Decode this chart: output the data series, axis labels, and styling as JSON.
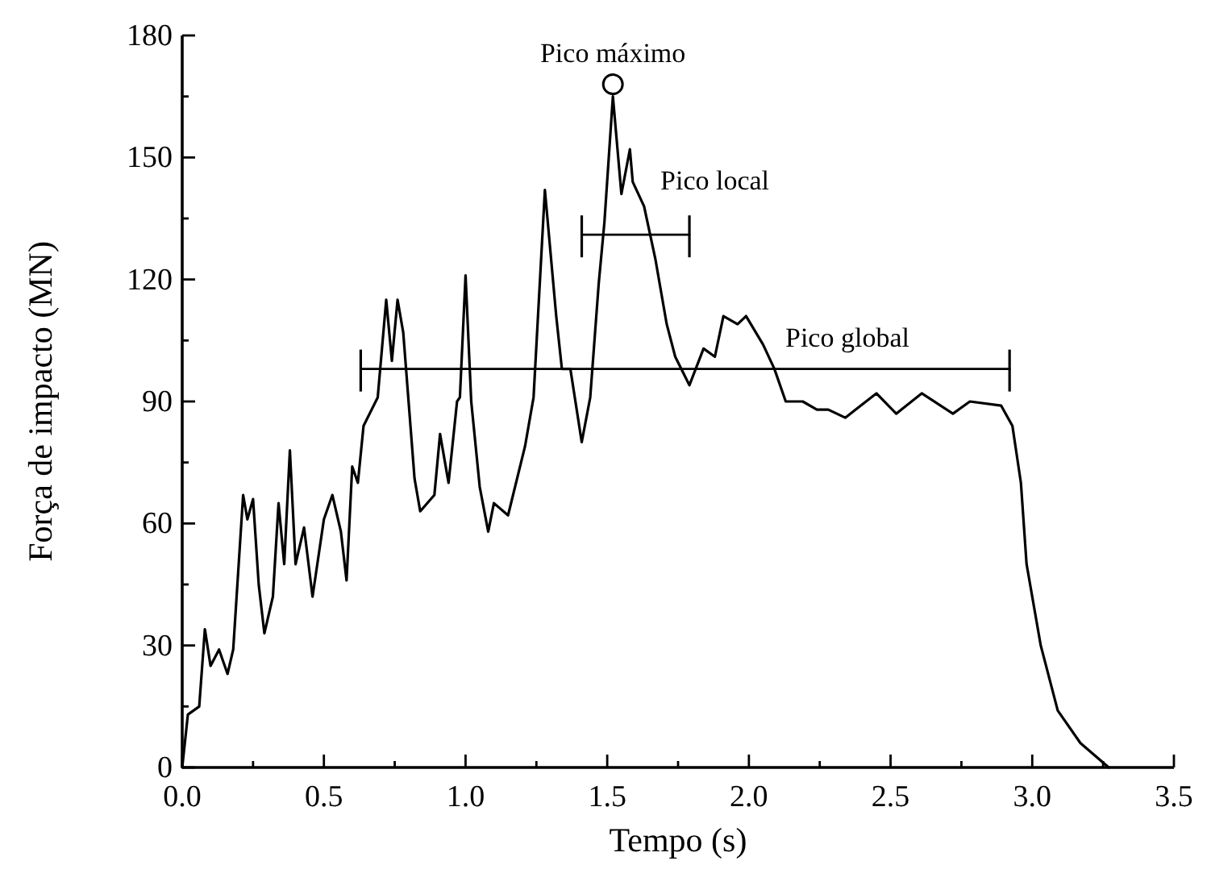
{
  "chart_data": {
    "type": "line",
    "xlabel": "Tempo (s)",
    "ylabel": "Força de impacto (MN)",
    "xlim": [
      0,
      3.5
    ],
    "ylim": [
      0,
      180
    ],
    "xticks": [
      {
        "value": 0,
        "label": "0.0"
      },
      {
        "value": 0.25,
        "label": null
      },
      {
        "value": 0.5,
        "label": "0.5"
      },
      {
        "value": 0.75,
        "label": null
      },
      {
        "value": 1,
        "label": "1.0"
      },
      {
        "value": 1.25,
        "label": null
      },
      {
        "value": 1.5,
        "label": "1.5"
      },
      {
        "value": 1.75,
        "label": null
      },
      {
        "value": 2,
        "label": "2.0"
      },
      {
        "value": 2.25,
        "label": null
      },
      {
        "value": 2.5,
        "label": "2.5"
      },
      {
        "value": 2.75,
        "label": null
      },
      {
        "value": 3,
        "label": "3.0"
      },
      {
        "value": 3.25,
        "label": null
      },
      {
        "value": 3.5,
        "label": "3.5"
      }
    ],
    "yticks": [
      0,
      {
        "value": 15,
        "label": null
      },
      30,
      {
        "value": 45,
        "label": null
      },
      60,
      {
        "value": 75,
        "label": null
      },
      90,
      {
        "value": 105,
        "label": null
      },
      120,
      {
        "value": 135,
        "label": null
      },
      150,
      {
        "value": 165,
        "label": null
      },
      180
    ],
    "grid": false,
    "series": [
      {
        "color": "#000000",
        "marker": "none",
        "line_style": "solid",
        "x": [
          0,
          0.02,
          0.06,
          0.08,
          0.1,
          0.13,
          0.16,
          0.18,
          0.215,
          0.23,
          0.25,
          0.27,
          0.29,
          0.32,
          0.34,
          0.36,
          0.38,
          0.4,
          0.43,
          0.46,
          0.5,
          0.53,
          0.56,
          0.58,
          0.6,
          0.62,
          0.64,
          0.69,
          0.72,
          0.74,
          0.76,
          0.78,
          0.82,
          0.84,
          0.89,
          0.91,
          0.94,
          0.97,
          0.98,
          1,
          1.02,
          1.05,
          1.08,
          1.1,
          1.15,
          1.21,
          1.24,
          1.28,
          1.32,
          1.34,
          1.37,
          1.41,
          1.44,
          1.47,
          1.49,
          1.52,
          1.55,
          1.58,
          1.59,
          1.63,
          1.67,
          1.71,
          1.74,
          1.79,
          1.84,
          1.88,
          1.91,
          1.96,
          1.99,
          2.05,
          2.09,
          2.13,
          2.19,
          2.24,
          2.28,
          2.34,
          2.45,
          2.52,
          2.61,
          2.72,
          2.78,
          2.89,
          2.93,
          2.96,
          2.98,
          3.03,
          3.09,
          3.17,
          3.27
        ],
        "values": [
          0,
          13,
          15,
          34,
          25,
          29,
          23,
          29,
          67,
          61,
          66,
          45,
          33,
          42,
          65,
          50,
          78,
          50,
          59,
          42,
          61,
          67,
          58,
          46,
          74,
          70,
          84,
          91,
          115,
          100,
          115,
          107,
          71,
          63,
          67,
          82,
          70,
          90,
          91,
          121,
          90,
          69,
          58,
          65,
          62,
          79,
          91,
          142,
          111,
          98,
          98,
          80,
          91,
          119,
          134,
          165,
          141,
          152,
          144,
          138,
          125,
          109,
          101,
          94,
          103,
          101,
          111,
          109,
          111,
          104,
          98,
          90,
          90,
          88,
          88,
          86,
          92,
          87,
          92,
          87,
          90,
          89,
          84,
          70,
          50,
          30,
          14,
          6,
          0
        ]
      },
      {
        "name": "Pico local",
        "color": "#000000",
        "marker": "none",
        "line_style": "solid",
        "x": [
          1.41,
          1.79
        ],
        "values": [
          131,
          131
        ]
      },
      {
        "name": "Pico global",
        "color": "#000000",
        "marker": "none",
        "line_style": "solid",
        "x": [
          0.63,
          2.92
        ],
        "values": [
          98,
          98
        ]
      },
      {
        "type": "scatter",
        "name": "Pico máximo",
        "color": "#000000",
        "marker": "circle",
        "x": [
          1.52
        ],
        "values": [
          168
        ]
      }
    ]
  }
}
